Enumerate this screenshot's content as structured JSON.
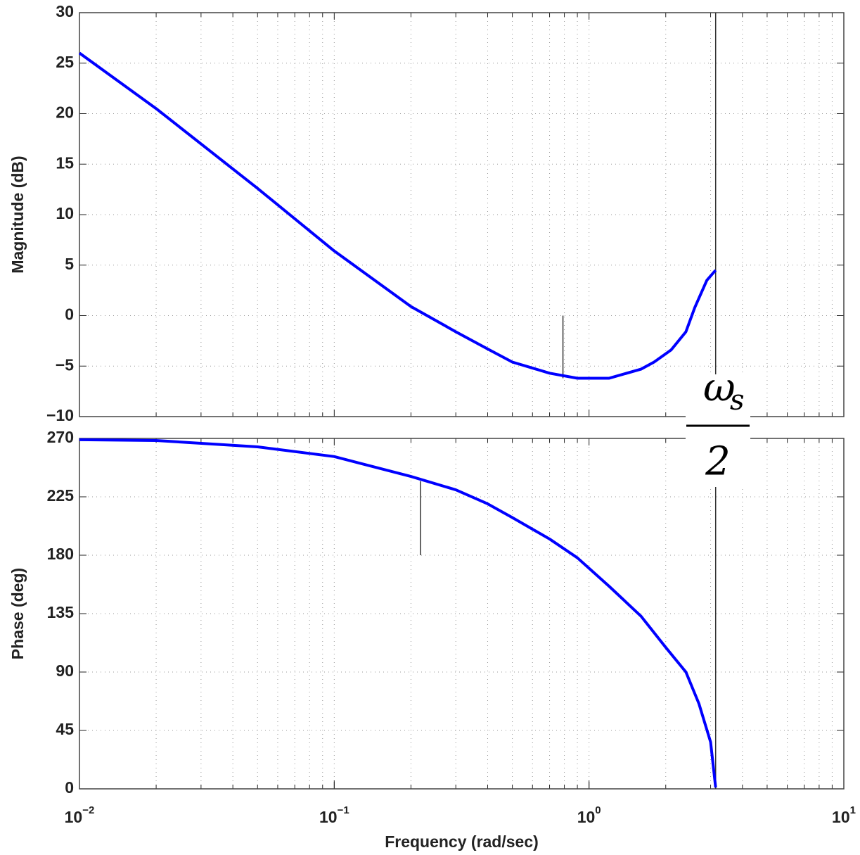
{
  "chart_data": [
    {
      "type": "line",
      "ylabel": "Magnitude (dB)",
      "xscale": "log",
      "grid": true,
      "xlim": [
        0.01,
        10
      ],
      "ylim": [
        -10,
        30
      ],
      "yticks": [
        {
          "value": -10,
          "label": "−10"
        },
        {
          "value": -5,
          "label": "−5"
        },
        0,
        5,
        10,
        15,
        20,
        25,
        30
      ],
      "x": [
        0.01,
        0.02,
        0.05,
        0.1,
        0.2,
        0.3,
        0.4,
        0.5,
        0.7,
        0.9,
        1.2,
        1.6,
        1.8,
        2.1,
        2.4,
        2.6,
        2.9,
        3.14
      ],
      "series": [
        {
          "color": "#0000ff",
          "values": [
            26,
            20.5,
            12.6,
            6.4,
            0.9,
            -1.6,
            -3.3,
            -4.6,
            -5.7,
            -6.2,
            -6.2,
            -5.3,
            -4.6,
            -3.4,
            -1.6,
            0.8,
            3.5,
            4.5
          ]
        }
      ],
      "margin_line": {
        "x": 0.79,
        "y": [
          -6.2,
          0
        ]
      }
    },
    {
      "type": "line",
      "ylabel": "Phase (deg)",
      "xlabel": "Frequency  (rad/sec)",
      "xscale": "log",
      "grid": true,
      "xlim": [
        0.01,
        10
      ],
      "ylim": [
        0,
        270
      ],
      "xticks": [
        {
          "value": 0.01,
          "label": "10",
          "exponent": "−2"
        },
        {
          "value": 0.1,
          "label": "10",
          "exponent": "−1"
        },
        {
          "value": 1,
          "label": "10",
          "exponent": "0"
        },
        {
          "value": 10,
          "label": "10",
          "exponent": "1"
        }
      ],
      "yticks": [
        0,
        45,
        90,
        135,
        180,
        225,
        270
      ],
      "x": [
        0.01,
        0.02,
        0.05,
        0.1,
        0.2,
        0.3,
        0.4,
        0.5,
        0.7,
        0.9,
        1.2,
        1.6,
        2.0,
        2.4,
        2.7,
        3.0,
        3.14
      ],
      "series": [
        {
          "color": "#0000ff",
          "values": [
            269,
            268.4,
            263.5,
            256,
            240.7,
            230.4,
            219.6,
            209,
            192.5,
            178,
            156,
            133,
            109,
            90,
            65.6,
            36,
            1
          ]
        }
      ],
      "margin_line": {
        "x": 0.218,
        "y": [
          180,
          237
        ]
      }
    }
  ],
  "nyquist_x": 3.14,
  "annotation": {
    "symbol": "ω",
    "subscript": "s",
    "denominator": "2"
  }
}
